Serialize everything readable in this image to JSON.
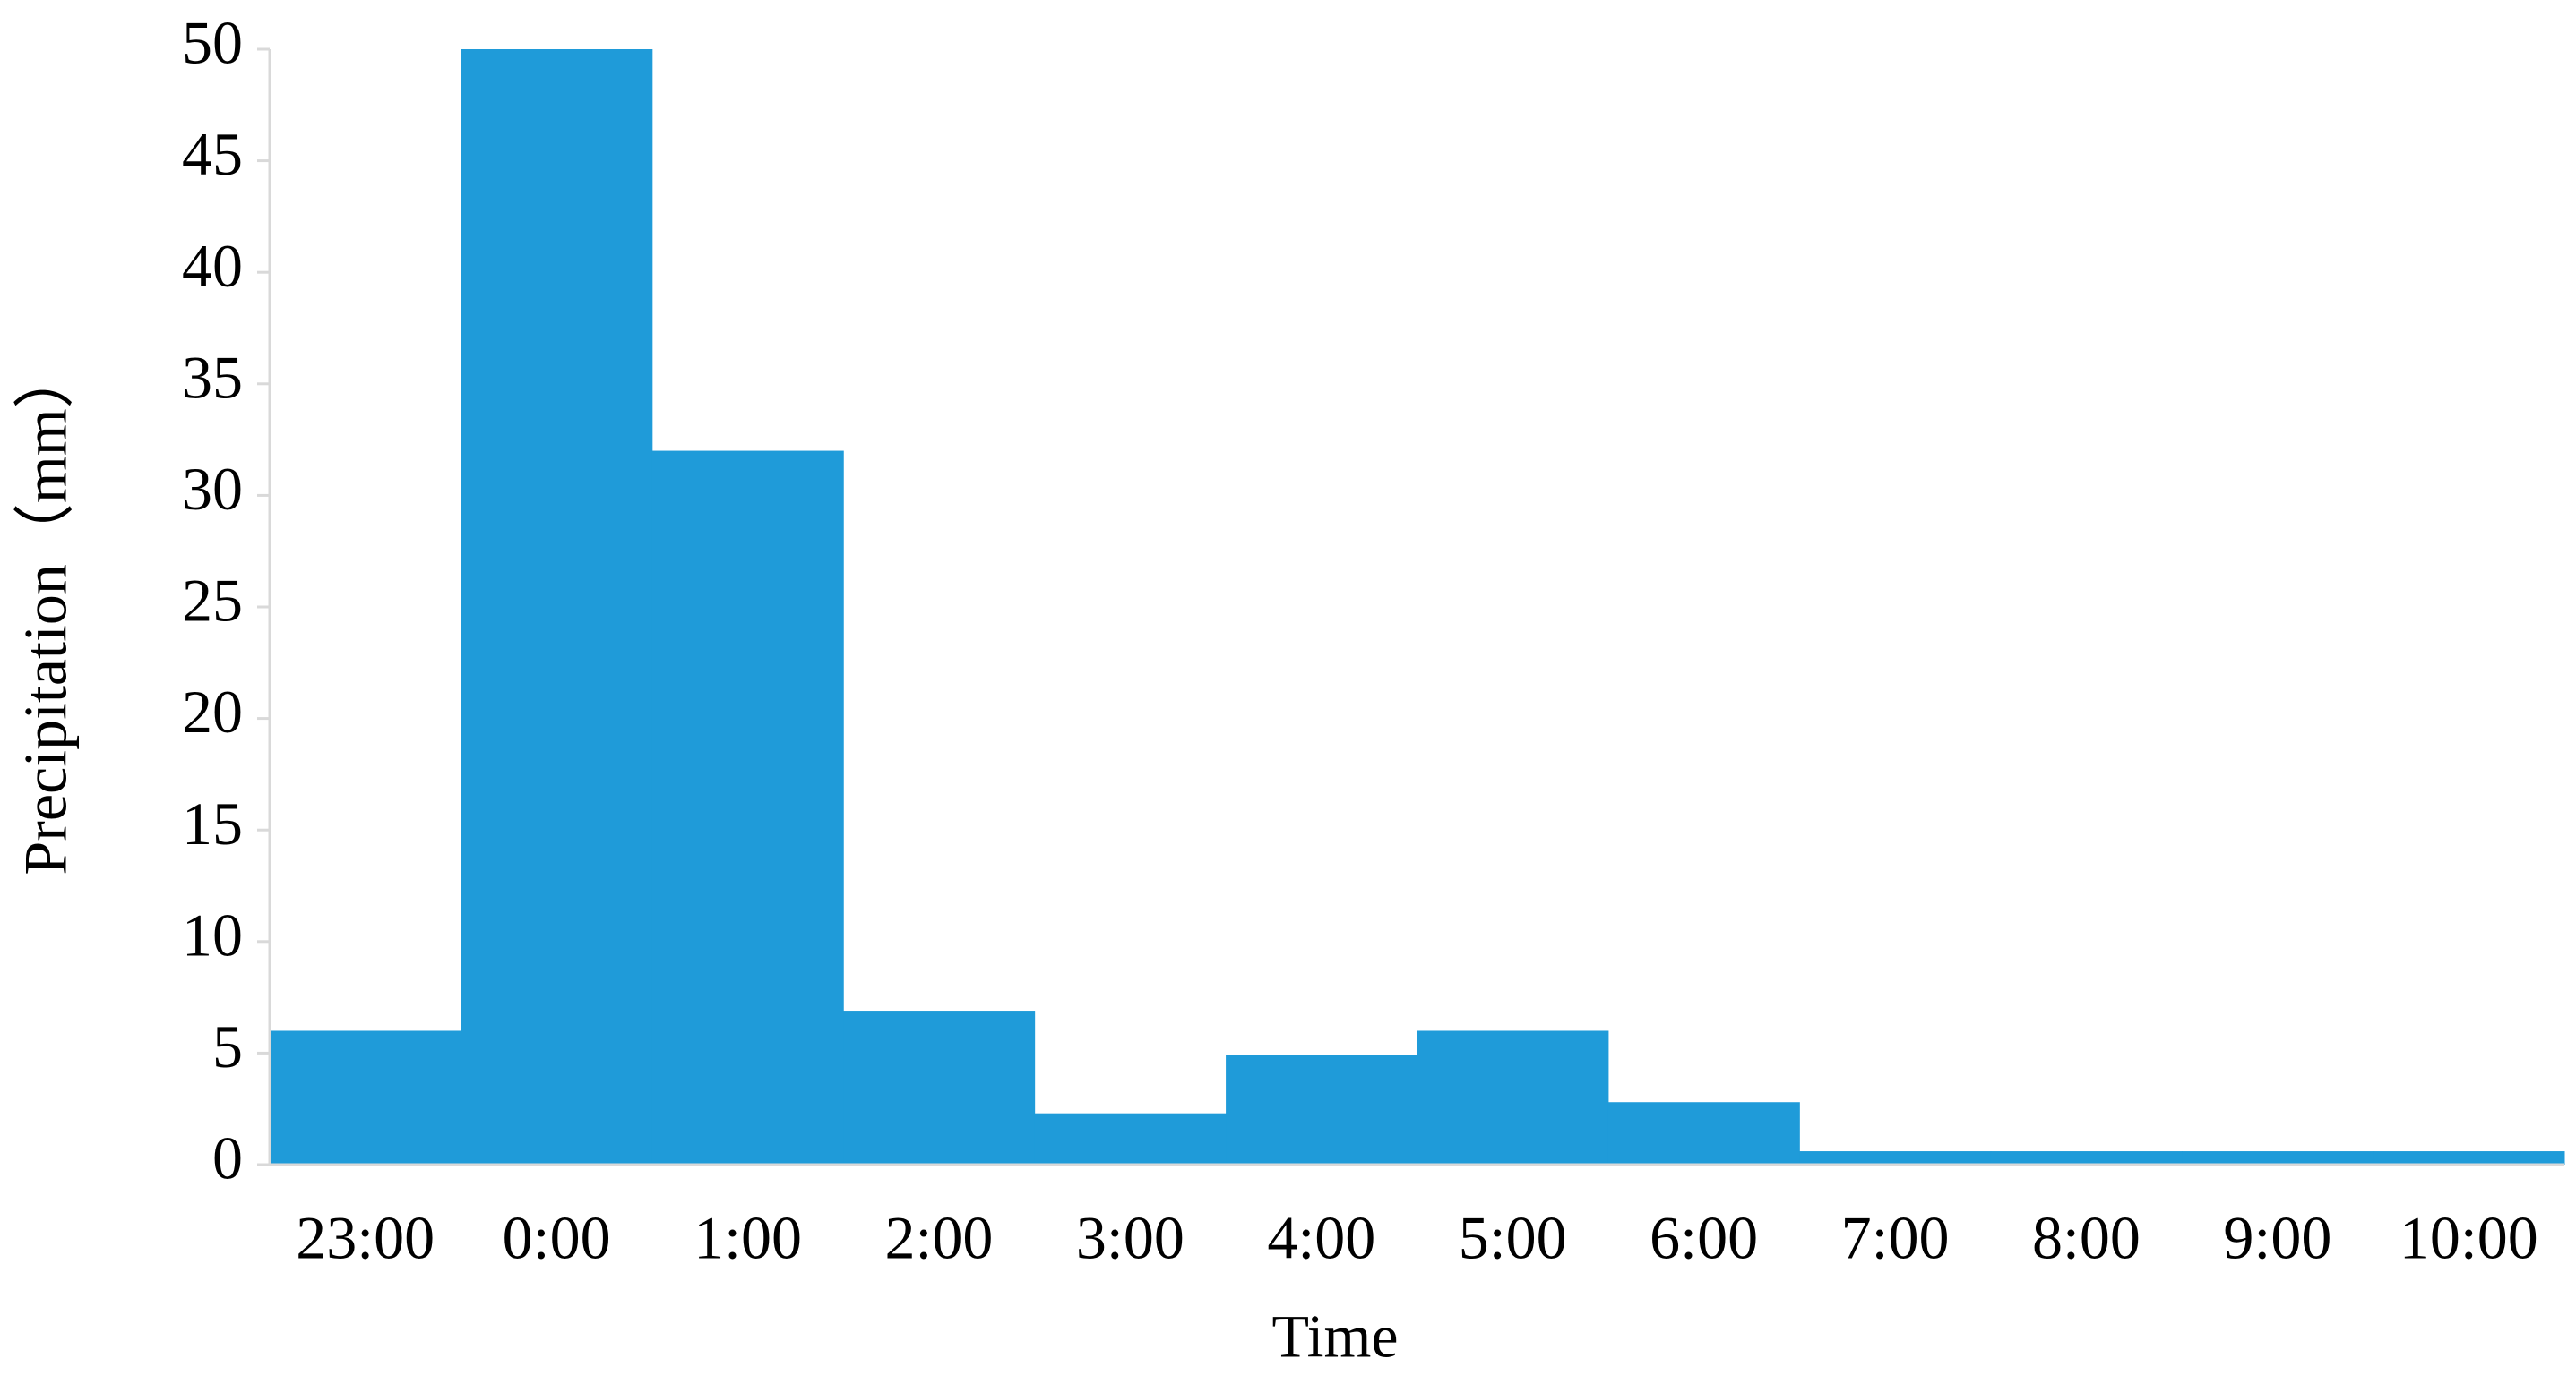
{
  "chart_data": {
    "type": "bar",
    "x_label": "Time",
    "y_label": "Precipitation（mm）",
    "categories": [
      "23:00",
      "0:00",
      "1:00",
      "2:00",
      "3:00",
      "4:00",
      "5:00",
      "6:00",
      "7:00",
      "8:00",
      "9:00",
      "10:00"
    ],
    "values": [
      6,
      50,
      32,
      6.9,
      2.3,
      4.9,
      6,
      2.8,
      0.6,
      0.6,
      0.6,
      0.6
    ],
    "color": "#1f9bd9",
    "ylim": [
      0,
      50
    ],
    "yticks": [
      0,
      5,
      10,
      15,
      20,
      25,
      30,
      35,
      40,
      45,
      50
    ],
    "grid": false
  }
}
